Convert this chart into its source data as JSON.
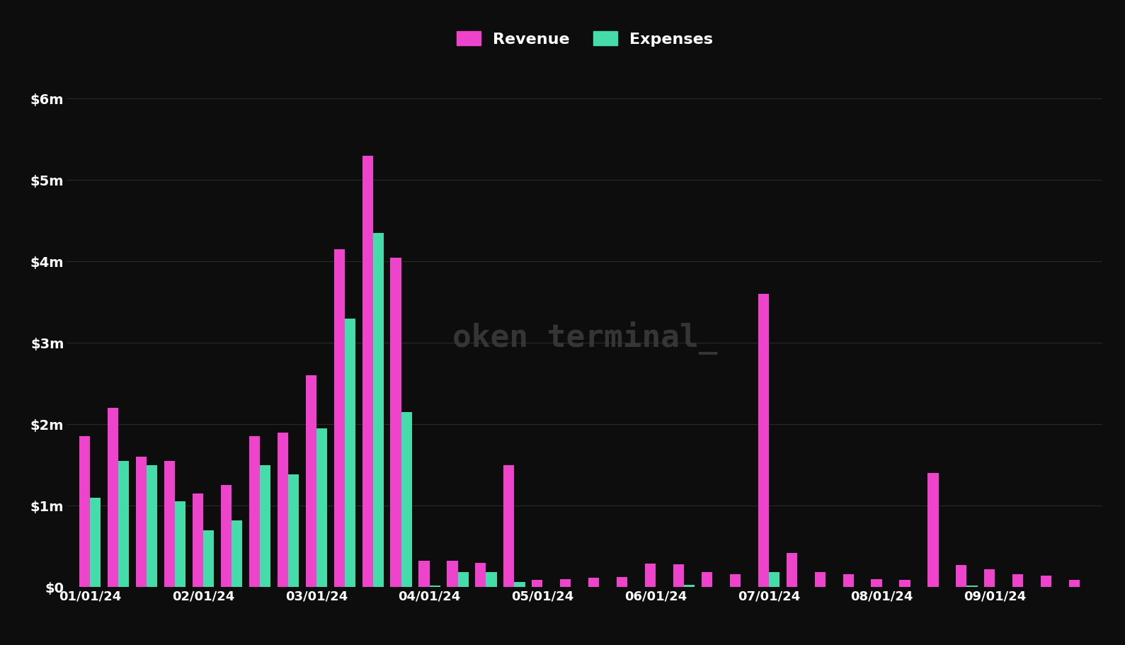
{
  "background_color": "#0d0d0d",
  "revenue_color": "#ee44cc",
  "expenses_color": "#44ddaa",
  "legend_text_color": "#ffffff",
  "grid_color": "#2a2a2a",
  "ylim": [
    0,
    6500000
  ],
  "yticks": [
    0,
    1000000,
    2000000,
    3000000,
    4000000,
    5000000,
    6000000
  ],
  "ytick_labels": [
    "$0",
    "$1m",
    "$2m",
    "$3m",
    "$4m",
    "$5m",
    "$6m"
  ],
  "watermark": "oken terminal_",
  "revenue": [
    1850000,
    2200000,
    1600000,
    1550000,
    1150000,
    1250000,
    1850000,
    1900000,
    2600000,
    4150000,
    5300000,
    4050000,
    320000,
    320000,
    300000,
    1500000,
    90000,
    100000,
    110000,
    120000,
    290000,
    280000,
    180000,
    160000,
    3600000,
    420000,
    180000,
    160000,
    100000,
    90000,
    1400000,
    270000,
    220000,
    160000,
    140000,
    90000
  ],
  "expenses": [
    1100000,
    1550000,
    1500000,
    1050000,
    700000,
    820000,
    1500000,
    1380000,
    1950000,
    3300000,
    4350000,
    2150000,
    20000,
    180000,
    180000,
    60000,
    0,
    0,
    0,
    0,
    0,
    25000,
    0,
    0,
    180000,
    0,
    0,
    0,
    0,
    0,
    0,
    20000,
    0,
    0,
    0,
    0
  ],
  "xtick_labels": [
    "01/01/24",
    "02/01/24",
    "03/01/24",
    "04/01/24",
    "05/01/24",
    "06/01/24",
    "07/01/24",
    "08/01/24",
    "09/01/24"
  ],
  "xtick_positions": [
    0,
    4,
    8,
    12,
    16,
    20,
    24,
    28,
    32
  ]
}
